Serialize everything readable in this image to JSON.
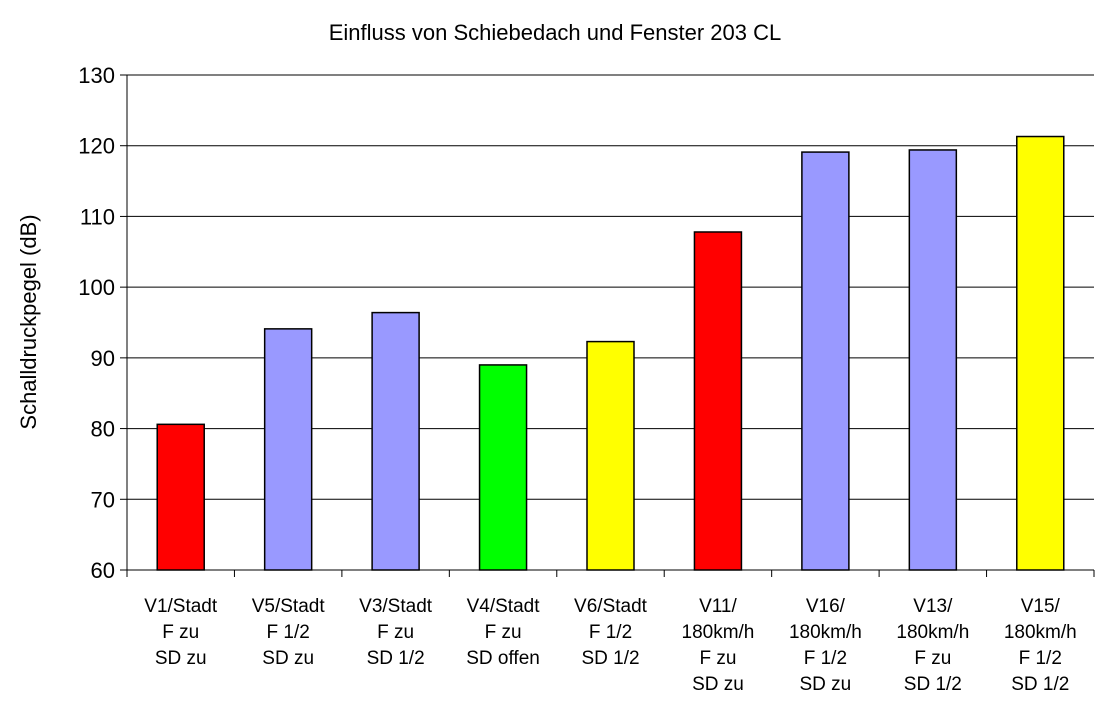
{
  "chart_data": {
    "type": "bar",
    "title": "Einfluss von Schiebedach und Fenster 203 CL",
    "y_label": "Schalldruckpegel (dB)",
    "categories": [
      [
        "V1/Stadt",
        "F zu",
        "SD zu"
      ],
      [
        "V5/Stadt",
        "F 1/2",
        "SD zu"
      ],
      [
        "V3/Stadt",
        "F zu",
        "SD 1/2"
      ],
      [
        "V4/Stadt",
        "F zu",
        "SD offen"
      ],
      [
        "V6/Stadt",
        "F 1/2",
        "SD 1/2"
      ],
      [
        "V11/",
        "180km/h",
        "F zu",
        "SD zu"
      ],
      [
        "V16/",
        "180km/h",
        "F 1/2",
        "SD zu"
      ],
      [
        "V13/",
        "180km/h",
        "F zu",
        "SD 1/2"
      ],
      [
        "V15/",
        "180km/h",
        "F 1/2",
        "SD 1/2"
      ]
    ],
    "values": [
      80.6,
      94.1,
      96.4,
      89.0,
      92.3,
      107.8,
      119.1,
      119.4,
      121.3
    ],
    "colors": [
      "#ff0000",
      "#9999ff",
      "#9999ff",
      "#00ff00",
      "#ffff00",
      "#ff0000",
      "#9999ff",
      "#9999ff",
      "#ffff00"
    ],
    "ylim": [
      60,
      130
    ],
    "yticks": [
      60,
      70,
      80,
      90,
      100,
      110,
      120,
      130
    ],
    "grid": true
  }
}
